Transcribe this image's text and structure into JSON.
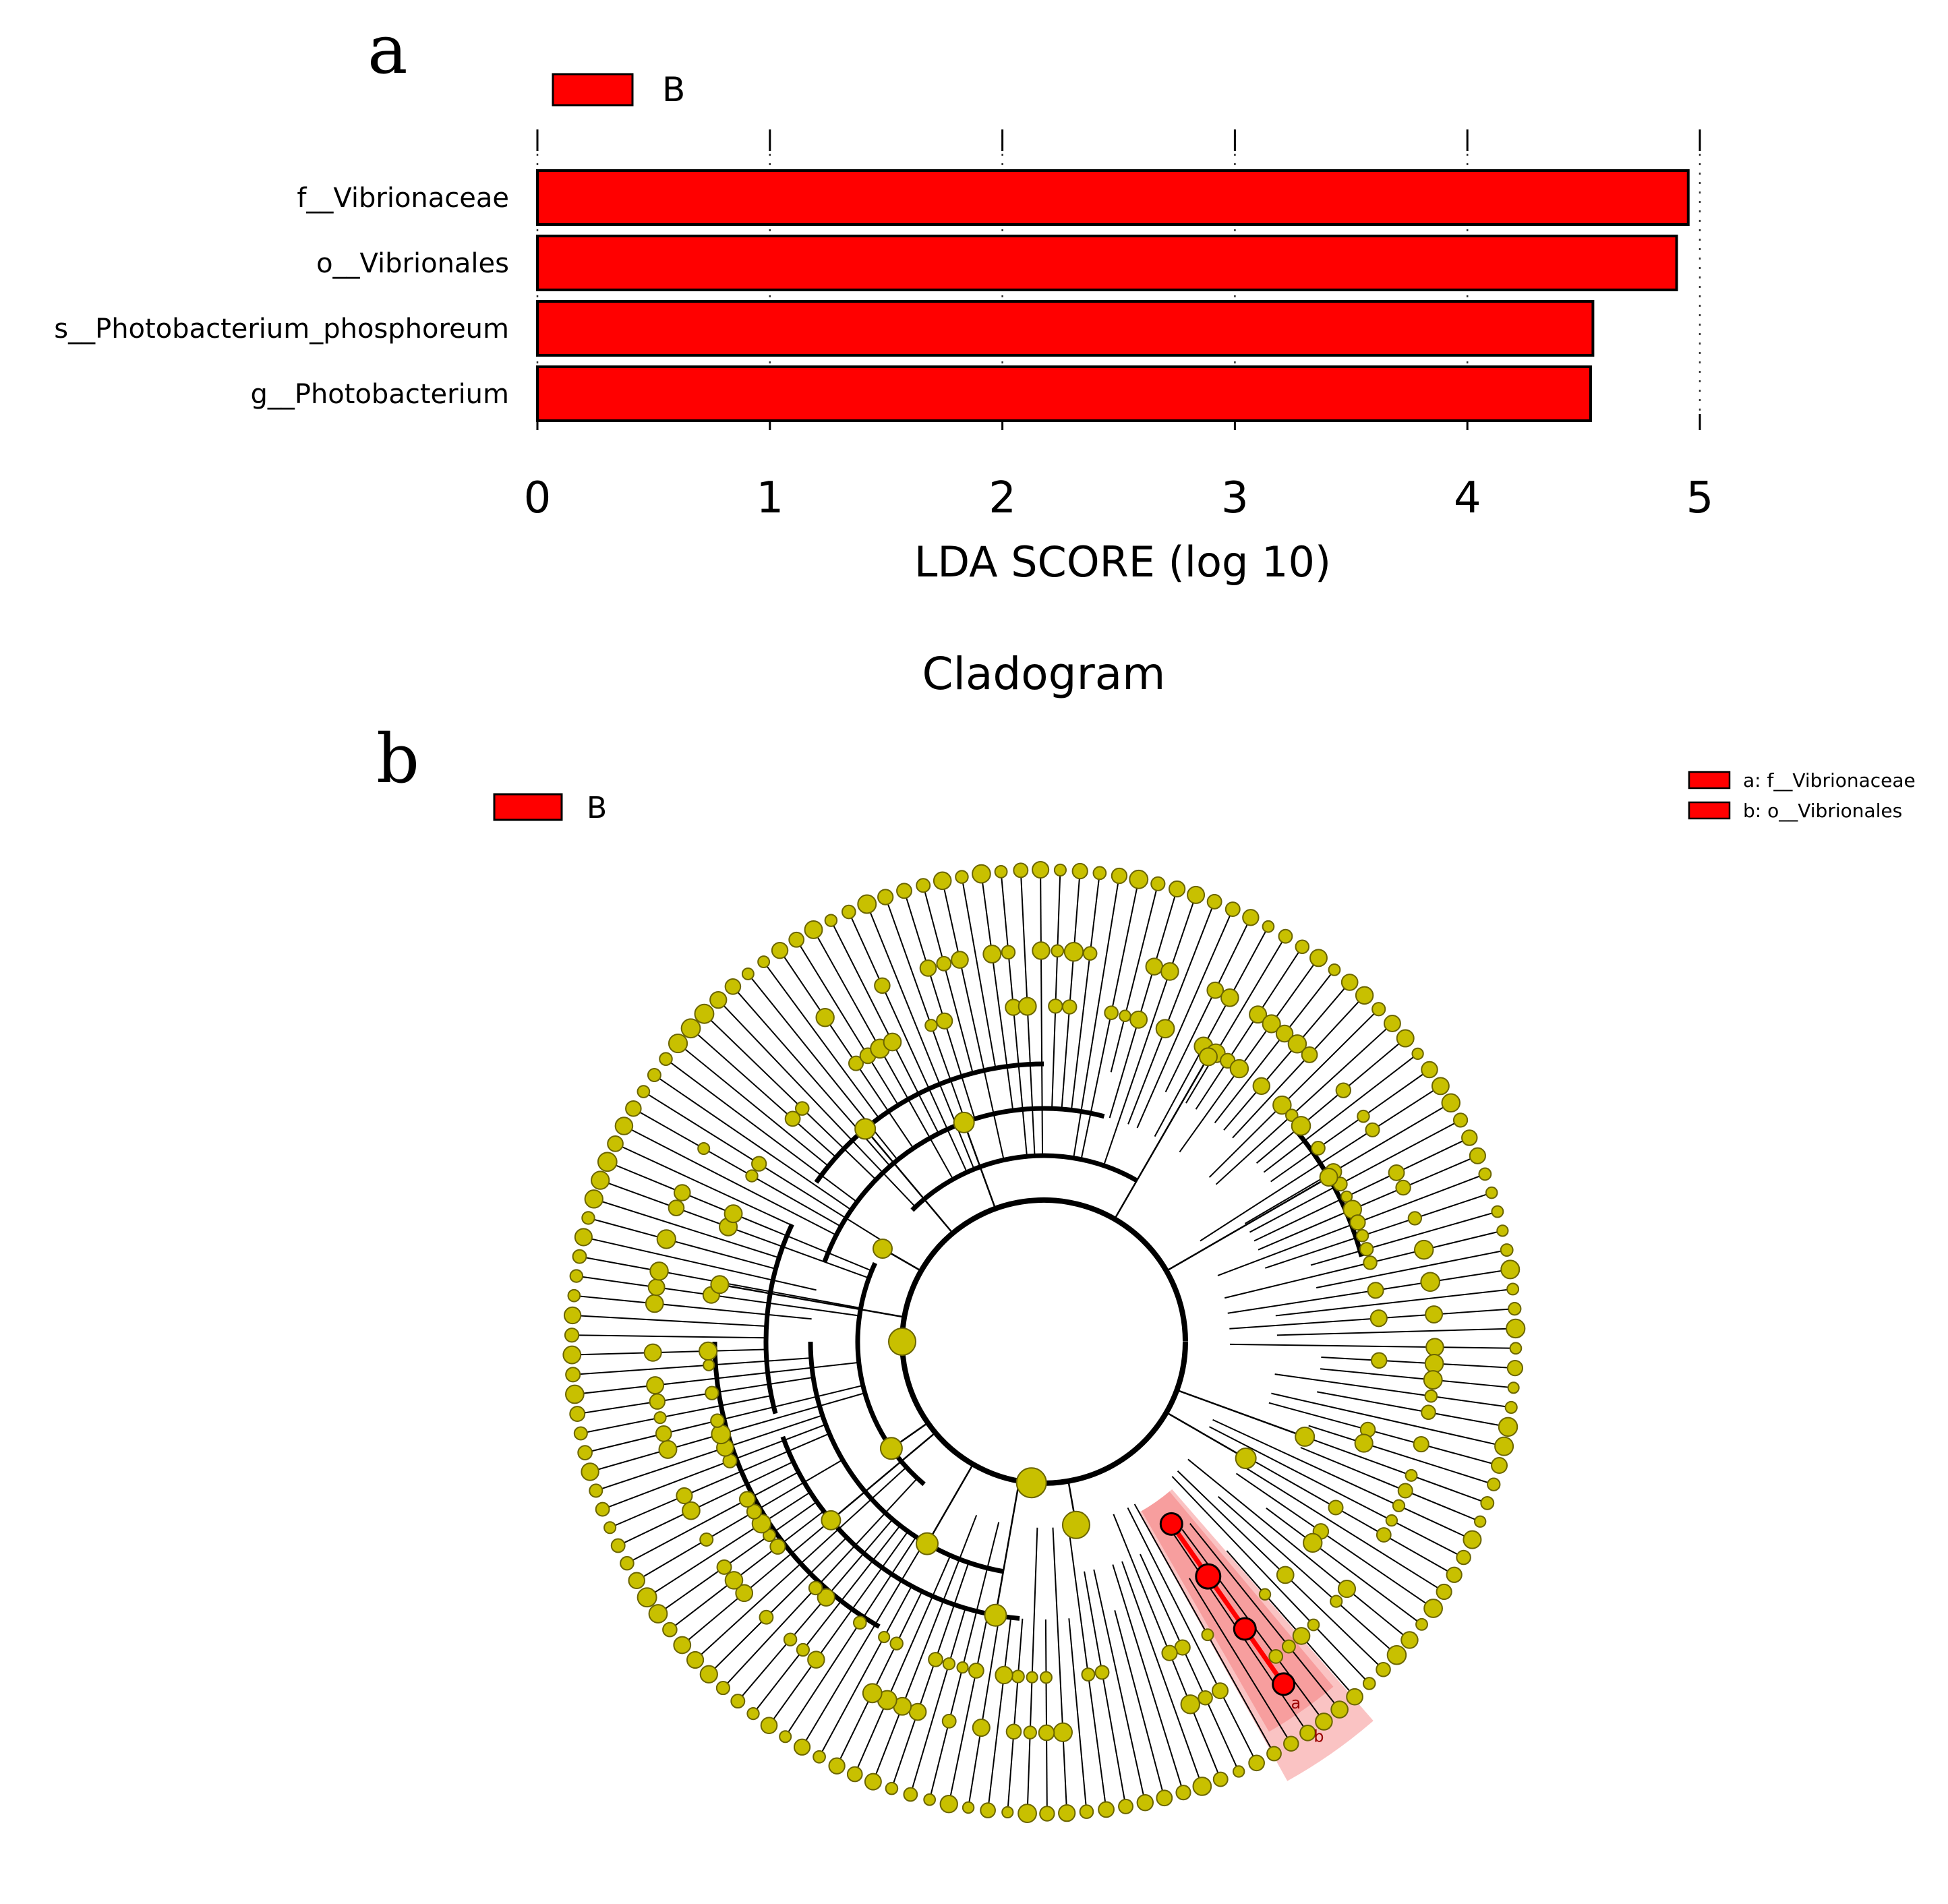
{
  "panels": {
    "a": {
      "letter": "a"
    },
    "b": {
      "letter": "b"
    }
  },
  "colors": {
    "group": "#ff0000",
    "node": "#c8c000",
    "node_stroke": "#6b6500",
    "highlight": "#f47a7a"
  },
  "chart_data": [
    {
      "type": "bar",
      "orientation": "horizontal",
      "title": "",
      "legend": {
        "entries": [
          "B"
        ],
        "placement": "top-left"
      },
      "categories": [
        "f__Vibrionaceae",
        "o__Vibrionales",
        "s__Photobacterium_phosphoreum",
        "g__Photobacterium"
      ],
      "values": [
        4.95,
        4.9,
        4.54,
        4.53
      ],
      "xlabel": "LDA SCORE (log 10)",
      "ylabel": "",
      "xlim": [
        0,
        5
      ],
      "xticks": [
        "0",
        "1",
        "2",
        "3",
        "4",
        "5"
      ],
      "grid": true
    },
    {
      "type": "cladogram",
      "title": "Cladogram",
      "legend": {
        "entries": [
          "B"
        ],
        "placement": "top-left"
      },
      "key": [
        "a: f__Vibrionaceae",
        "b: o__Vibrionales"
      ],
      "clade_labels": [
        "a",
        "b"
      ],
      "rings": 5,
      "highlighted_path": [
        "o__Vibrionales",
        "f__Vibrionaceae"
      ]
    }
  ]
}
